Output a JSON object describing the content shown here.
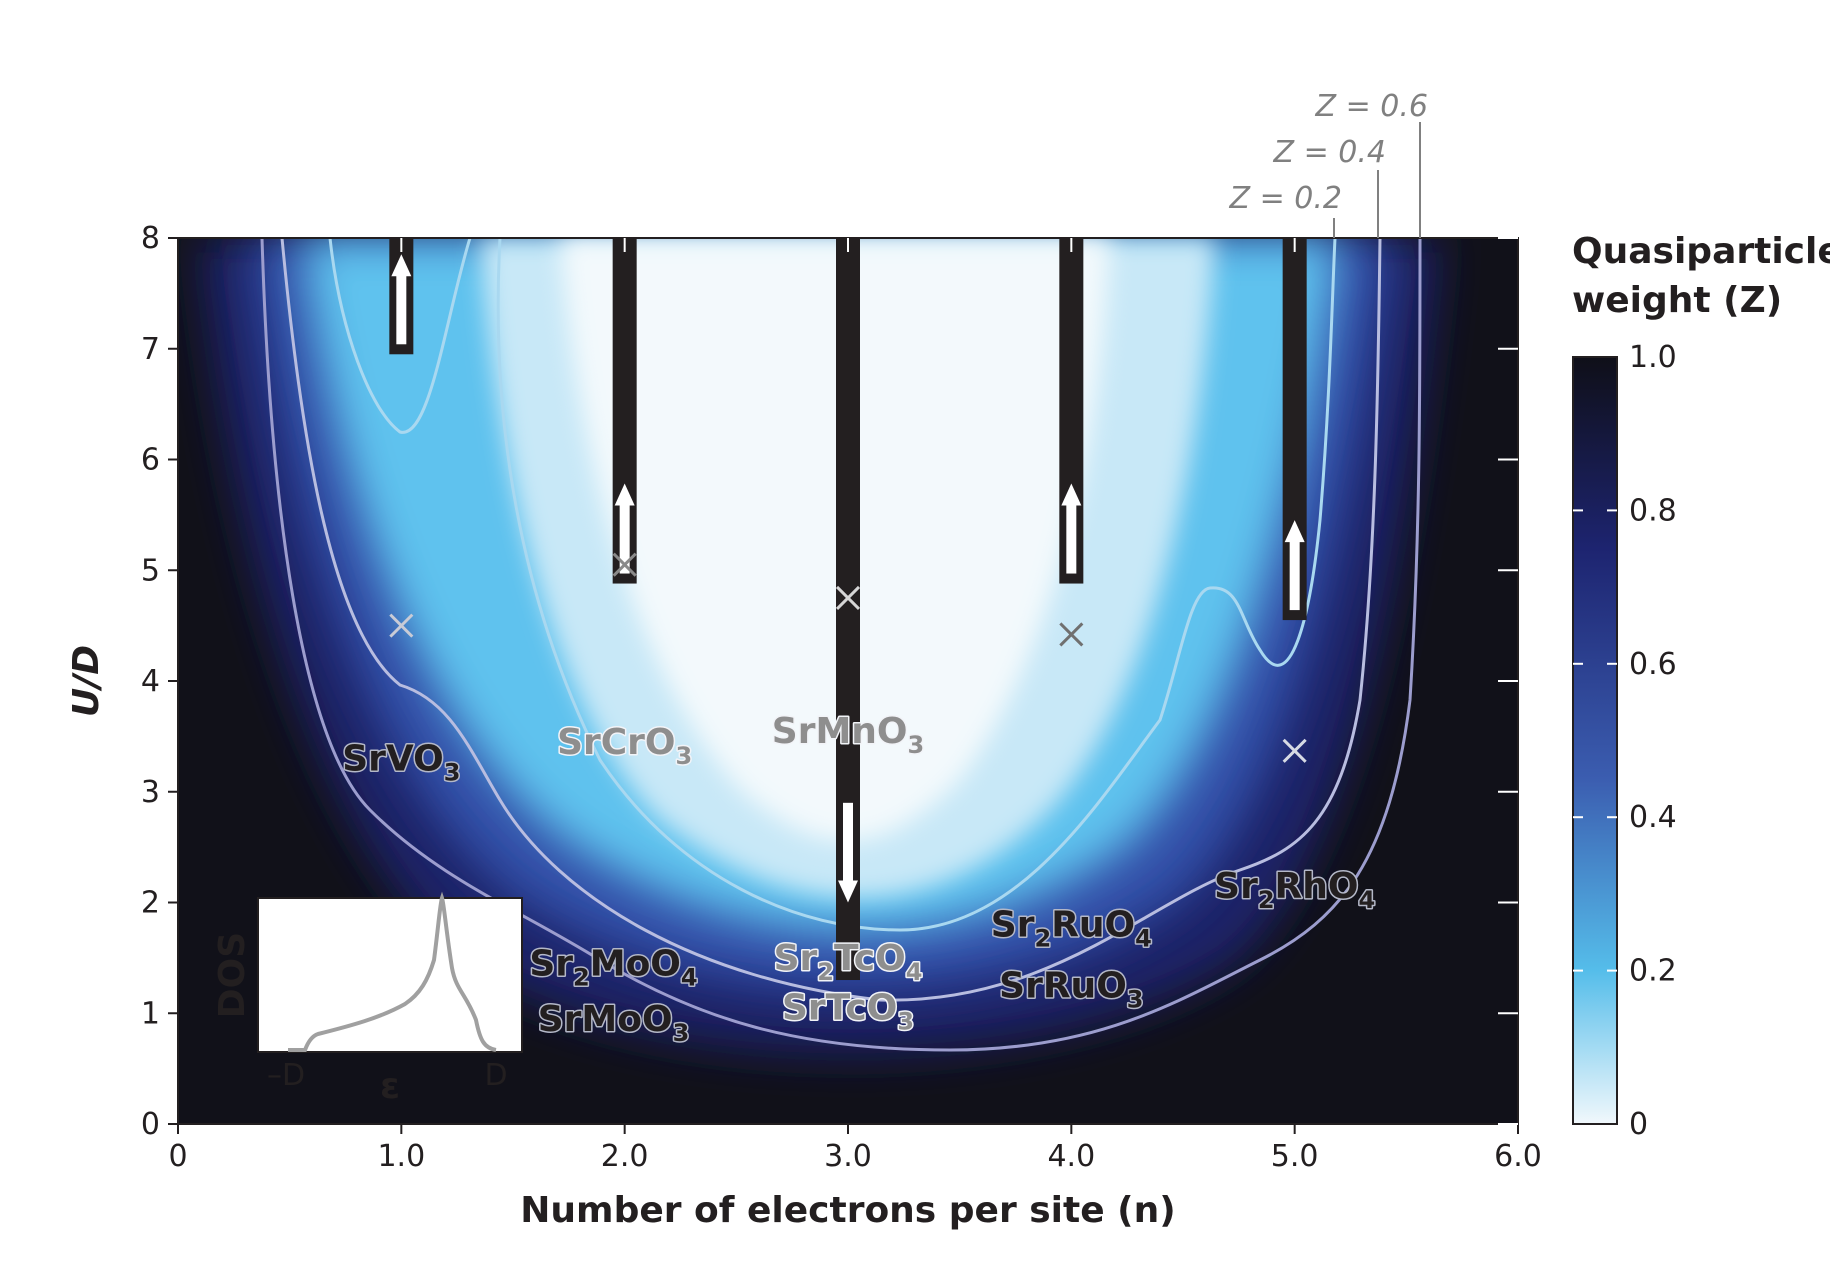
{
  "chart_data": {
    "type": "heatmap",
    "xlabel": "Number of electrons per site (n)",
    "ylabel": "U/D",
    "xlim": [
      0,
      6
    ],
    "ylim": [
      0,
      8
    ],
    "x_ticks": [
      "0",
      "1.0",
      "2.0",
      "3.0",
      "4.0",
      "5.0",
      "6.0"
    ],
    "y_ticks": [
      "0",
      "1",
      "2",
      "3",
      "4",
      "5",
      "6",
      "7",
      "8"
    ],
    "colorbar": {
      "title_line1": "Quasiparticle",
      "title_line2": "weight (Z)",
      "ticks": [
        "0",
        "0.2",
        "0.4",
        "0.6",
        "0.8",
        "1.0"
      ],
      "range": [
        0,
        1
      ],
      "colors": [
        "#f1f8fc",
        "#55bdea",
        "#3b5db0",
        "#1d2470",
        "#0f0f18"
      ]
    },
    "contours": [
      {
        "label": "Z = 0.2",
        "level": 0.2
      },
      {
        "label": "Z = 0.4",
        "level": 0.4
      },
      {
        "label": "Z = 0.6",
        "level": 0.6
      }
    ],
    "materials": [
      {
        "name": "SrVO3",
        "main": "SrVO",
        "sub": "3",
        "n": 1.0,
        "u": 3.3,
        "tone": "dark"
      },
      {
        "name": "SrCrO3",
        "main": "SrCrO",
        "sub": "3",
        "n": 2.0,
        "u": 3.45,
        "tone": "grey"
      },
      {
        "name": "SrMnO3",
        "main": "SrMnO",
        "sub": "3",
        "n": 3.0,
        "u": 3.55,
        "tone": "grey"
      },
      {
        "name": "Sr2MoO4",
        "main": "Sr",
        "sub": "2",
        "main2": "MoO",
        "sub2": "4",
        "n": 1.95,
        "u": 1.45,
        "tone": "dark"
      },
      {
        "name": "SrMoO3",
        "main": "SrMoO",
        "sub": "3",
        "n": 1.95,
        "u": 0.95,
        "tone": "dark"
      },
      {
        "name": "Sr2TcO4",
        "main": "Sr",
        "sub": "2",
        "main2": "TcO",
        "sub2": "4",
        "n": 3.0,
        "u": 1.5,
        "tone": "grey"
      },
      {
        "name": "SrTcO3",
        "main": "SrTcO",
        "sub": "3",
        "n": 3.0,
        "u": 1.05,
        "tone": "grey"
      },
      {
        "name": "Sr2RuO4",
        "main": "Sr",
        "sub": "2",
        "main2": "RuO",
        "sub2": "4",
        "n": 4.0,
        "u": 1.8,
        "tone": "dark"
      },
      {
        "name": "SrRuO3",
        "main": "SrRuO",
        "sub": "3",
        "n": 4.0,
        "u": 1.25,
        "tone": "dark"
      },
      {
        "name": "Sr2RhO4",
        "main": "Sr",
        "sub": "2",
        "main2": "RhO",
        "sub2": "4",
        "n": 5.0,
        "u": 2.15,
        "tone": "dark"
      }
    ],
    "markers": [
      {
        "n": 1.0,
        "u": 4.5,
        "color": "#c8cbd6"
      },
      {
        "n": 2.0,
        "u": 5.05,
        "color": "#8a8a8a"
      },
      {
        "n": 3.0,
        "u": 4.75,
        "color": "#d6d6d6"
      },
      {
        "n": 4.0,
        "u": 4.42,
        "color": "#707070"
      },
      {
        "n": 5.0,
        "u": 3.37,
        "color": "#d6dae4"
      }
    ],
    "bars": [
      {
        "n": 1.0,
        "u_bottom": 6.95,
        "arrow": "up"
      },
      {
        "n": 2.0,
        "u_bottom": 4.88,
        "arrow": "up"
      },
      {
        "n": 3.0,
        "u_bottom": 1.3,
        "arrow": "down"
      },
      {
        "n": 4.0,
        "u_bottom": 4.88,
        "arrow": "up"
      },
      {
        "n": 5.0,
        "u_bottom": 4.55,
        "arrow": "up"
      }
    ],
    "inset": {
      "ylabel": "DOS",
      "xlabel": "ε",
      "ticks": [
        "–D",
        "D"
      ]
    }
  }
}
